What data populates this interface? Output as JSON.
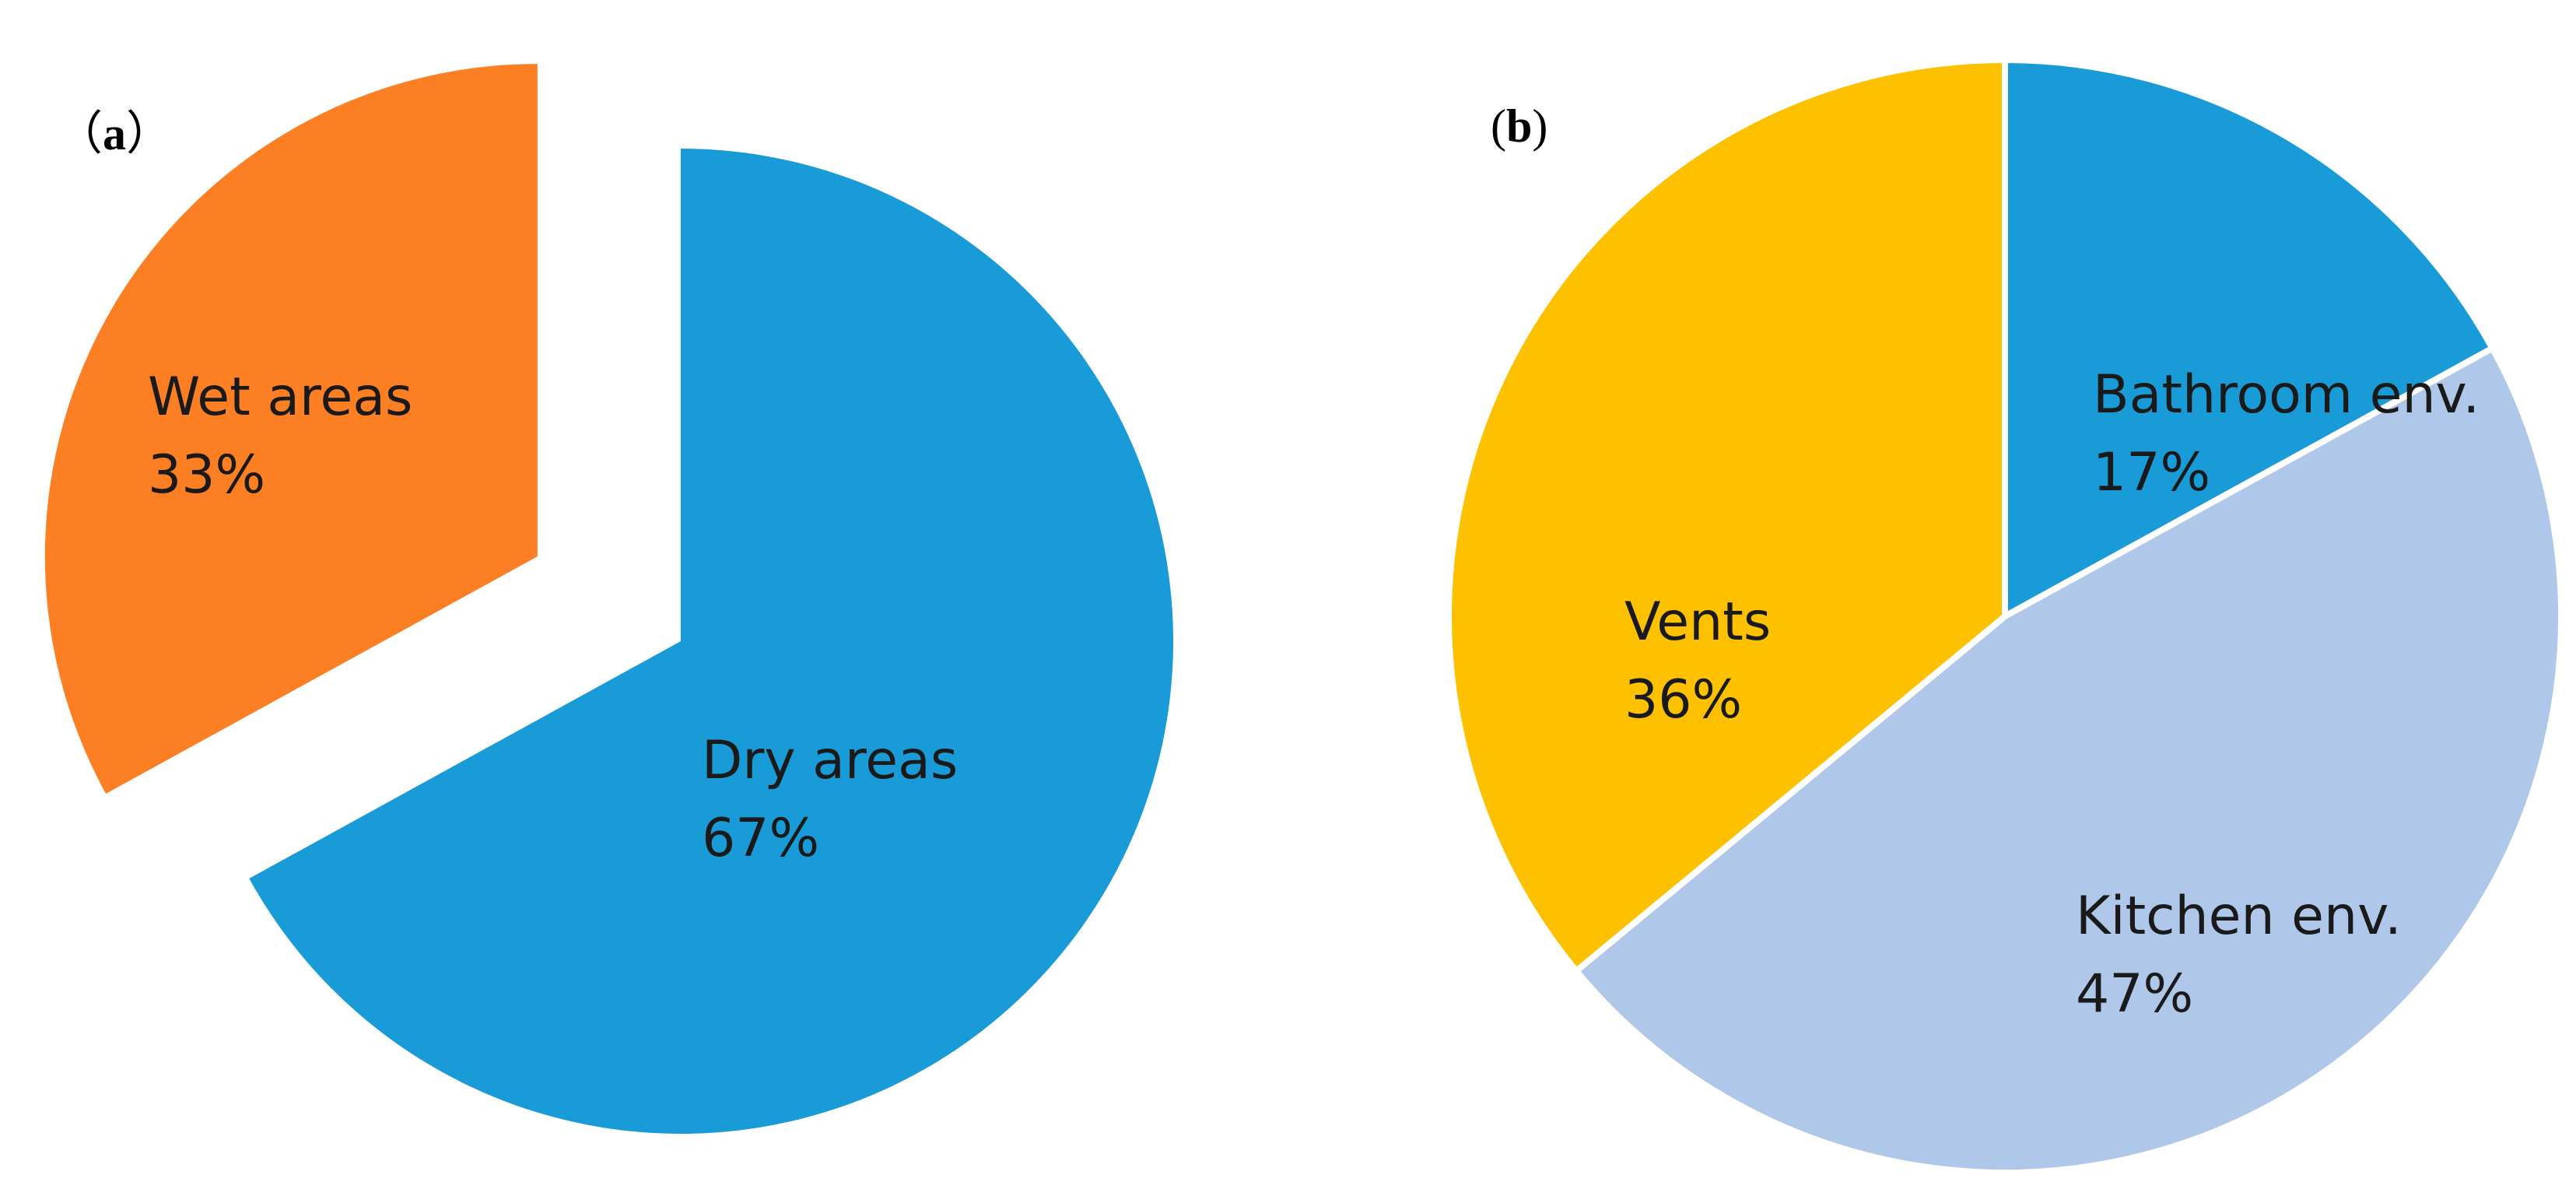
{
  "panels": {
    "a": {
      "open": "（",
      "letter": "a",
      "close": "）"
    },
    "b": {
      "open": "(",
      "letter": "b",
      "close": ")"
    }
  },
  "chart_data": [
    {
      "type": "pie",
      "panel": "a",
      "exploded": "Wet areas",
      "slices": [
        {
          "label": "Wet areas",
          "value": 33,
          "percent_label": "33%",
          "color": "#FD7F24"
        },
        {
          "label": "Dry areas",
          "value": 67,
          "percent_label": "67%",
          "color": "#189BD6"
        }
      ]
    },
    {
      "type": "pie",
      "panel": "b",
      "slices": [
        {
          "label": "Bathroom env.",
          "value": 17,
          "percent_label": "17%",
          "color": "#189BD6"
        },
        {
          "label": "Kitchen env.",
          "value": 47,
          "percent_label": "47%",
          "color": "#AFC8E9"
        },
        {
          "label": "Vents",
          "value": 36,
          "percent_label": "36%",
          "color": "#FEC100"
        }
      ]
    }
  ]
}
